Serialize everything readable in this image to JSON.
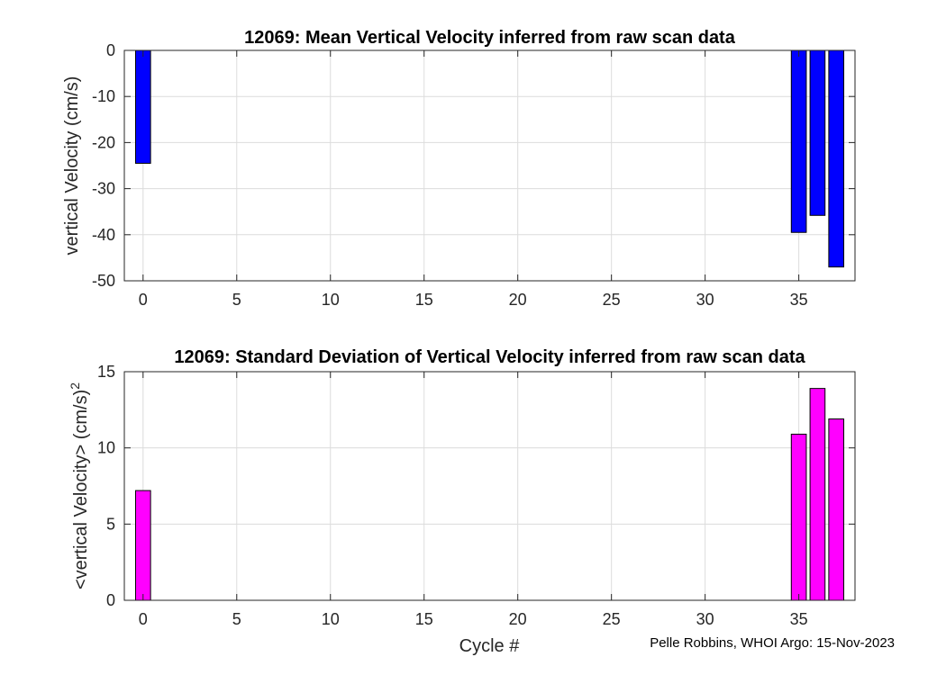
{
  "credit": "Pelle Robbins, WHOI Argo: 15-Nov-2023",
  "xlabel": "Cycle #",
  "chart_data": [
    {
      "type": "bar",
      "title": "12069: Mean Vertical Velocity inferred from raw scan data",
      "xlabel": "",
      "ylabel": "vertical Velocity (cm/s)",
      "ylabel_superscript": "",
      "x": [
        0,
        35,
        36,
        37
      ],
      "values": [
        -24.5,
        -39.5,
        -35.8,
        -47
      ],
      "xlim": [
        -1,
        38
      ],
      "ylim": [
        -50,
        0
      ],
      "xticks": [
        0,
        5,
        10,
        15,
        20,
        25,
        30,
        35
      ],
      "yticks": [
        0,
        -10,
        -20,
        -30,
        -40,
        -50
      ],
      "bar_color": "#0000ff",
      "grid": true
    },
    {
      "type": "bar",
      "title": "12069: Standard Deviation of Vertical Velocity inferred from raw scan data",
      "xlabel": "Cycle #",
      "ylabel": "<vertical Velocity> (cm/s)",
      "ylabel_superscript": "2",
      "x": [
        0,
        35,
        36,
        37
      ],
      "values": [
        7.2,
        10.9,
        13.9,
        11.9
      ],
      "xlim": [
        -1,
        38
      ],
      "ylim": [
        0,
        15
      ],
      "xticks": [
        0,
        5,
        10,
        15,
        20,
        25,
        30,
        35
      ],
      "yticks": [
        15,
        10,
        5,
        0
      ],
      "bar_color": "#ff00ff",
      "grid": true
    }
  ]
}
